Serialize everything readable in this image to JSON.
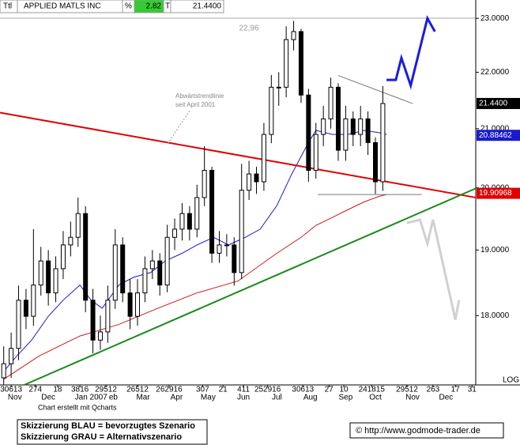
{
  "chart_data": {
    "type": "candlestick",
    "header": {
      "ttl": "Ttl",
      "name": "APPLIED MATLS INC",
      "pct": "%",
      "change": 2.82,
      "t": "T",
      "last": {
        "value": 21.44,
        "label": "21.4400"
      }
    },
    "log_scale": true,
    "scale_label": "LOG",
    "xlim": [
      0,
      256
    ],
    "ylim": [
      17.0,
      23.35
    ],
    "yticks": [
      {
        "value": 23,
        "label": "23.0000"
      },
      {
        "value": 22,
        "label": "22.0000"
      },
      {
        "value": 21,
        "label": "21.0000"
      },
      {
        "value": 20,
        "label": "20.0000"
      },
      {
        "value": 19,
        "label": "19.0000"
      },
      {
        "value": 18,
        "label": "18.0000"
      }
    ],
    "xticks": [
      {
        "value": 6,
        "label": "30613"
      },
      {
        "value": 19,
        "label": "274"
      },
      {
        "value": 31,
        "label": "18"
      },
      {
        "value": 43,
        "label": "3816"
      },
      {
        "value": 57,
        "label": "29512"
      },
      {
        "value": 74,
        "label": "26512"
      },
      {
        "value": 91,
        "label": "262916"
      },
      {
        "value": 109,
        "label": "307"
      },
      {
        "value": 120,
        "label": "21"
      },
      {
        "value": 131,
        "label": "411"
      },
      {
        "value": 144,
        "label": "252916"
      },
      {
        "value": 163,
        "label": "30613"
      },
      {
        "value": 177,
        "label": "27"
      },
      {
        "value": 185,
        "label": "10"
      },
      {
        "value": 200,
        "label": "241815"
      },
      {
        "value": 219,
        "label": "29512"
      },
      {
        "value": 233,
        "label": "263"
      },
      {
        "value": 245,
        "label": "17"
      },
      {
        "value": 254,
        "label": "31"
      }
    ],
    "month_ticks": [
      {
        "value": 8,
        "label": "Nov"
      },
      {
        "value": 26,
        "label": "Dec"
      },
      {
        "value": 49,
        "label": "Jan 2007"
      },
      {
        "value": 61,
        "label": "eb"
      },
      {
        "value": 77,
        "label": "Mar"
      },
      {
        "value": 95,
        "label": "Apr"
      },
      {
        "value": 112,
        "label": "May"
      },
      {
        "value": 131,
        "label": "Jun"
      },
      {
        "value": 149,
        "label": "Jul"
      },
      {
        "value": 167,
        "label": "Aug"
      },
      {
        "value": 186,
        "label": "Sep"
      },
      {
        "value": 202,
        "label": "Oct"
      },
      {
        "value": 222,
        "label": "Nov"
      },
      {
        "value": 240,
        "label": "Dec"
      }
    ],
    "x": [
      2,
      6,
      10,
      14,
      18,
      22,
      26,
      30,
      34,
      38,
      42,
      46,
      50,
      54,
      58,
      62,
      66,
      70,
      74,
      78,
      82,
      86,
      90,
      94,
      98,
      102,
      106,
      110,
      114,
      118,
      122,
      126,
      130,
      134,
      138,
      142,
      146,
      150,
      154,
      158,
      162,
      166,
      170,
      174,
      178,
      182,
      186,
      190,
      194,
      198,
      202,
      206
    ],
    "open": [
      17.1,
      17.3,
      17.52,
      18.23,
      17.99,
      18.46,
      18.83,
      18.34,
      18.71,
      19.08,
      19.2,
      19.58,
      18.23,
      17.64,
      17.76,
      18.23,
      19.08,
      18.34,
      17.99,
      18.34,
      18.71,
      18.83,
      18.46,
      19.2,
      19.33,
      19.58,
      19.33,
      19.84,
      20.29,
      18.95,
      19.08,
      19.08,
      18.65,
      19.96,
      20.23,
      20.1,
      20.9,
      21.73,
      21.73,
      22.6,
      22.75,
      21.59,
      20.29,
      20.9,
      21.17,
      21.73,
      20.63,
      21.17,
      20.9,
      21.17,
      20.76,
      20.1
    ],
    "high": [
      17.55,
      17.75,
      18.45,
      18.4,
      19.33,
      19.05,
      19.0,
      18.9,
      19.3,
      19.45,
      19.84,
      19.7,
      18.4,
      18.0,
      18.45,
      19.33,
      19.2,
      18.55,
      18.55,
      18.9,
      19.0,
      18.95,
      19.4,
      19.5,
      19.75,
      19.7,
      20.05,
      20.7,
      20.35,
      19.3,
      19.25,
      19.2,
      20.4,
      20.45,
      20.35,
      21.1,
      21.95,
      22.0,
      22.85,
      22.95,
      22.8,
      21.7,
      21.1,
      21.4,
      21.9,
      21.8,
      21.4,
      21.3,
      21.4,
      21.3,
      20.85,
      21.75
    ],
    "low": [
      17.0,
      17.1,
      17.35,
      17.8,
      17.85,
      18.3,
      18.15,
      18.2,
      18.55,
      18.9,
      19.05,
      18.05,
      17.45,
      17.5,
      17.6,
      18.1,
      18.2,
      17.8,
      17.85,
      18.2,
      18.55,
      18.3,
      18.35,
      19.0,
      19.15,
      19.15,
      19.2,
      19.7,
      18.8,
      18.8,
      18.9,
      18.45,
      18.55,
      19.8,
      19.9,
      19.95,
      20.75,
      21.4,
      21.55,
      22.4,
      21.45,
      20.1,
      20.15,
      20.7,
      21.0,
      20.45,
      20.45,
      20.7,
      20.7,
      20.55,
      19.9,
      19.95
    ],
    "close": [
      17.3,
      17.52,
      18.23,
      17.99,
      18.46,
      18.83,
      18.34,
      18.71,
      19.08,
      19.2,
      19.58,
      18.23,
      17.64,
      17.76,
      18.23,
      19.08,
      18.34,
      17.99,
      18.34,
      18.71,
      18.83,
      18.46,
      19.2,
      19.33,
      19.58,
      19.33,
      19.84,
      20.29,
      18.95,
      19.08,
      19.08,
      18.65,
      19.96,
      20.23,
      20.1,
      20.9,
      21.73,
      21.73,
      22.6,
      22.75,
      21.59,
      20.29,
      20.9,
      21.17,
      21.73,
      20.63,
      21.17,
      20.9,
      21.17,
      20.76,
      20.1,
      21.44
    ],
    "lines": [
      {
        "color": "#1a1acc",
        "width": 1,
        "x": [
          2,
          9,
          17,
          26,
          34,
          43,
          49,
          55,
          64,
          72,
          81,
          89,
          98,
          106,
          115,
          123,
          132,
          140,
          149,
          157,
          166,
          170,
          179,
          187,
          196,
          204,
          208
        ],
        "values": [
          17.19,
          17.41,
          17.64,
          17.99,
          18.23,
          18.46,
          18.23,
          18.11,
          18.46,
          18.58,
          18.65,
          18.83,
          18.95,
          19.08,
          19.2,
          19.08,
          19.2,
          19.33,
          19.71,
          20.23,
          20.76,
          20.97,
          20.9,
          20.9,
          20.97,
          20.93,
          20.9
        ]
      },
      {
        "color": "#cc1a1a",
        "width": 1,
        "x": [
          2,
          21,
          43,
          64,
          85,
          106,
          128,
          149,
          162,
          170,
          179,
          187,
          196,
          204,
          208
        ],
        "values": [
          17.08,
          17.41,
          17.7,
          17.87,
          18.11,
          18.34,
          18.52,
          18.95,
          19.2,
          19.39,
          19.52,
          19.64,
          19.77,
          19.86,
          19.89
        ]
      },
      {
        "color": "#e00000",
        "width": 2,
        "x": [
          0,
          256
        ],
        "values": [
          21.28,
          19.84
        ]
      },
      {
        "color": "#1a8a1a",
        "width": 2,
        "x": [
          13,
          256
        ],
        "values": [
          17.0,
          19.99
        ]
      },
      {
        "color": "#777777",
        "width": 1,
        "x": [
          182,
          222
        ],
        "values": [
          21.94,
          21.44
        ]
      },
      {
        "color": "#777777",
        "width": 1,
        "x": [
          171,
          227
        ],
        "values": [
          19.89,
          19.89
        ]
      },
      {
        "color": "#1a1ae6",
        "width": 3,
        "x": [
          208,
          213,
          216,
          221,
          230,
          234
        ],
        "values": [
          21.86,
          21.86,
          22.26,
          21.76,
          23.0,
          22.75
        ]
      },
      {
        "color": "#d0d0d0",
        "width": 3,
        "x": [
          219,
          226,
          230,
          233,
          238,
          245,
          247
        ],
        "values": [
          19.43,
          19.48,
          19.1,
          19.48,
          18.83,
          17.94,
          18.23
        ]
      }
    ],
    "last_labels": [
      {
        "value": 21.44,
        "label": "21.4400",
        "color": "#000000"
      },
      {
        "value": 20.88462,
        "label": "20.88462",
        "color": "#1a1acc"
      },
      {
        "value": 19.90968,
        "label": "19.90968",
        "color": "#e00000"
      }
    ],
    "peak_label": {
      "value": 22.96,
      "label": "22,96"
    },
    "annotation": [
      "Abwärtstrendlinie",
      "seit April 2001"
    ],
    "credit": "Chart erstellt mit Qcharts",
    "legend": [
      "Skizzierung BLAU = bevorzugtes Szenario",
      "Skizzierung GRAU = Alternativszenario"
    ],
    "copyright": "© http://www.godmode-trader.de"
  }
}
